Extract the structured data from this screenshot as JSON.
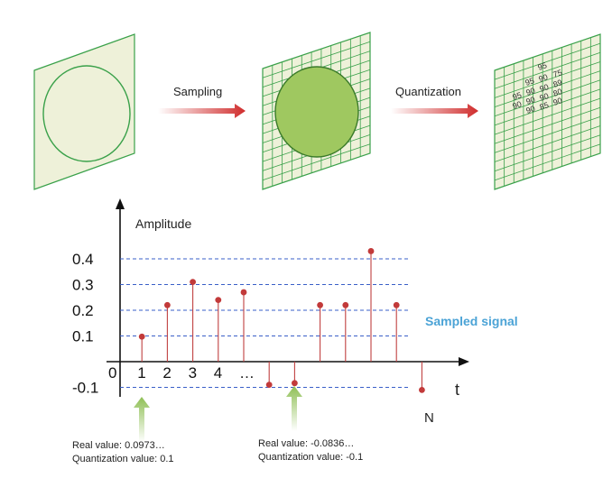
{
  "top_process": {
    "step1_label": "Sampling",
    "step2_label": "Quantization",
    "grid_values": [
      {
        "value": "95"
      },
      {
        "value": "95"
      },
      {
        "value": "90"
      },
      {
        "value": "75"
      },
      {
        "value": "95"
      },
      {
        "value": "90"
      },
      {
        "value": "90"
      },
      {
        "value": "89"
      },
      {
        "value": "90"
      },
      {
        "value": "90"
      },
      {
        "value": "90"
      },
      {
        "value": "80"
      },
      {
        "value": "90"
      },
      {
        "value": "85"
      },
      {
        "value": "90"
      }
    ],
    "colors": {
      "panel_fill": "#eef1d9",
      "panel_stroke": "#3aa14a",
      "circle_fill_outline": "#eef1d9",
      "circle_fill_sampled": "#9fc860",
      "grid_stroke": "#3aa14a",
      "arrow": "#d02c2c"
    }
  },
  "chart_data": {
    "type": "stem",
    "ylabel": "Amplitude",
    "xlabel": "t",
    "origin_label": "0",
    "x_tick_labels": [
      "1",
      "2",
      "3",
      "4",
      "…"
    ],
    "end_label": "N",
    "y_ticks": [
      {
        "value": 0.4,
        "label": "0.4"
      },
      {
        "value": 0.3,
        "label": "0.3"
      },
      {
        "value": 0.2,
        "label": "0.2"
      },
      {
        "value": 0.1,
        "label": "0.1"
      },
      {
        "value": -0.1,
        "label": "-0.1"
      }
    ],
    "ylim": [
      -0.15,
      0.55
    ],
    "samples": [
      {
        "x": 1,
        "y": 0.0973
      },
      {
        "x": 2,
        "y": 0.22
      },
      {
        "x": 3,
        "y": 0.31
      },
      {
        "x": 4,
        "y": 0.24
      },
      {
        "x": 5,
        "y": 0.27
      },
      {
        "x": 6,
        "y": -0.09
      },
      {
        "x": 7,
        "y": -0.0836
      },
      {
        "x": 8,
        "y": 0.22
      },
      {
        "x": 9,
        "y": 0.22
      },
      {
        "x": 10,
        "y": 0.43
      },
      {
        "x": 11,
        "y": 0.22
      },
      {
        "x": 12,
        "y": -0.11
      }
    ],
    "series_label": "Sampled signal",
    "colors": {
      "stem": "#c04040",
      "marker": "#c23a3a",
      "gridline": "#3a5fc8",
      "series_label": "#4ba3d6",
      "callout_arrow": "#8fbf55"
    }
  },
  "annotations": [
    {
      "real_text": "Real value: 0.0973…",
      "quant_text": "Quantization value: 0.1"
    },
    {
      "real_text": "Real value: -0.0836…",
      "quant_text": "Quantization value: -0.1"
    }
  ]
}
